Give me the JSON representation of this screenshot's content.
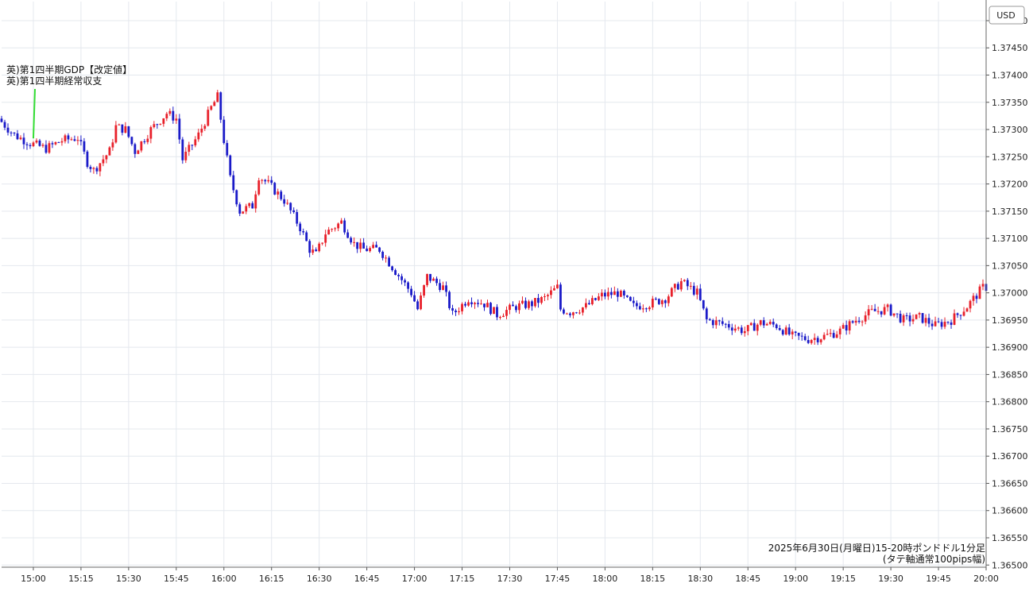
{
  "currency_label": "USD",
  "annotation": {
    "lines": [
      "英)第1四半期GDP【改定値】",
      "英)第1四半期経常収支"
    ],
    "time": "15:00"
  },
  "caption": {
    "line1": "2025年6月30日(月曜日)15-20時ポンドドル1分足",
    "line2": "(タテ軸通常100pips幅)"
  },
  "colors": {
    "up": "#e8202a",
    "down": "#1a1ac8",
    "grid": "#e4e8ee",
    "annotation_line": "#33dd33"
  },
  "chart_data": {
    "type": "candlestick",
    "pair": "GBP/USD",
    "timeframe": "1分足",
    "x_tick_labels": [
      "15:00",
      "15:15",
      "15:30",
      "15:45",
      "16:00",
      "16:15",
      "16:30",
      "16:45",
      "17:00",
      "17:15",
      "17:30",
      "17:45",
      "18:00",
      "18:15",
      "18:30",
      "18:45",
      "19:00",
      "19:15",
      "19:30",
      "19:45",
      "20:00"
    ],
    "y_tick_labels": [
      "1.37500",
      "1.37450",
      "1.37400",
      "1.37350",
      "1.37300",
      "1.37250",
      "1.37200",
      "1.37150",
      "1.37100",
      "1.37050",
      "1.37000",
      "1.36950",
      "1.36900",
      "1.36850",
      "1.36800",
      "1.36750",
      "1.36700",
      "1.36650",
      "1.36600",
      "1.36550",
      "1.36500"
    ],
    "xlim": [
      "14:50",
      "20:00"
    ],
    "ylim": [
      1.36496,
      1.37535
    ],
    "grid": true,
    "price_path": [
      [
        "14:50",
        1.3732
      ],
      [
        "14:55",
        1.3729
      ],
      [
        "15:00",
        1.37275
      ],
      [
        "15:05",
        1.37265
      ],
      [
        "15:10",
        1.3728
      ],
      [
        "15:15",
        1.37285
      ],
      [
        "15:18",
        1.3724
      ],
      [
        "15:20",
        1.37225
      ],
      [
        "15:25",
        1.3726
      ],
      [
        "15:27",
        1.37305
      ],
      [
        "15:30",
        1.373
      ],
      [
        "15:33",
        1.3726
      ],
      [
        "15:38",
        1.373
      ],
      [
        "15:43",
        1.3733
      ],
      [
        "15:46",
        1.3732
      ],
      [
        "15:48",
        1.37245
      ],
      [
        "15:53",
        1.3729
      ],
      [
        "15:57",
        1.3734
      ],
      [
        "15:59",
        1.3736
      ],
      [
        "16:01",
        1.3728
      ],
      [
        "16:03",
        1.3721
      ],
      [
        "16:06",
        1.3715
      ],
      [
        "16:10",
        1.3716
      ],
      [
        "16:12",
        1.37215
      ],
      [
        "16:15",
        1.372
      ],
      [
        "16:20",
        1.3717
      ],
      [
        "16:25",
        1.3712
      ],
      [
        "16:28",
        1.3708
      ],
      [
        "16:30",
        1.3707
      ],
      [
        "16:33",
        1.3711
      ],
      [
        "16:38",
        1.3713
      ],
      [
        "16:42",
        1.3709
      ],
      [
        "16:45",
        1.3708
      ],
      [
        "16:50",
        1.3708
      ],
      [
        "16:55",
        1.3704
      ],
      [
        "17:00",
        1.37
      ],
      [
        "17:02",
        1.3697
      ],
      [
        "17:05",
        1.3703
      ],
      [
        "17:10",
        1.3701
      ],
      [
        "17:13",
        1.3696
      ],
      [
        "17:18",
        1.3699
      ],
      [
        "17:23",
        1.3698
      ],
      [
        "17:27",
        1.3696
      ],
      [
        "17:33",
        1.36975
      ],
      [
        "17:38",
        1.3698
      ],
      [
        "17:42",
        1.3699
      ],
      [
        "17:46",
        1.3701
      ],
      [
        "17:47",
        1.3697
      ],
      [
        "17:50",
        1.36965
      ],
      [
        "17:55",
        1.36975
      ],
      [
        "18:00",
        1.36995
      ],
      [
        "18:05",
        1.37
      ],
      [
        "18:10",
        1.36975
      ],
      [
        "18:15",
        1.3698
      ],
      [
        "18:20",
        1.3699
      ],
      [
        "18:25",
        1.3702
      ],
      [
        "18:30",
        1.37
      ],
      [
        "18:33",
        1.3695
      ],
      [
        "18:40",
        1.3694
      ],
      [
        "18:45",
        1.3693
      ],
      [
        "18:50",
        1.36945
      ],
      [
        "18:55",
        1.3694
      ],
      [
        "19:00",
        1.3692
      ],
      [
        "19:05",
        1.36915
      ],
      [
        "19:10",
        1.3692
      ],
      [
        "19:15",
        1.3693
      ],
      [
        "19:20",
        1.3695
      ],
      [
        "19:25",
        1.36965
      ],
      [
        "19:30",
        1.3697
      ],
      [
        "19:35",
        1.3695
      ],
      [
        "19:40",
        1.36955
      ],
      [
        "19:45",
        1.3694
      ],
      [
        "19:50",
        1.3695
      ],
      [
        "19:55",
        1.36975
      ],
      [
        "20:00",
        1.3701
      ]
    ]
  }
}
